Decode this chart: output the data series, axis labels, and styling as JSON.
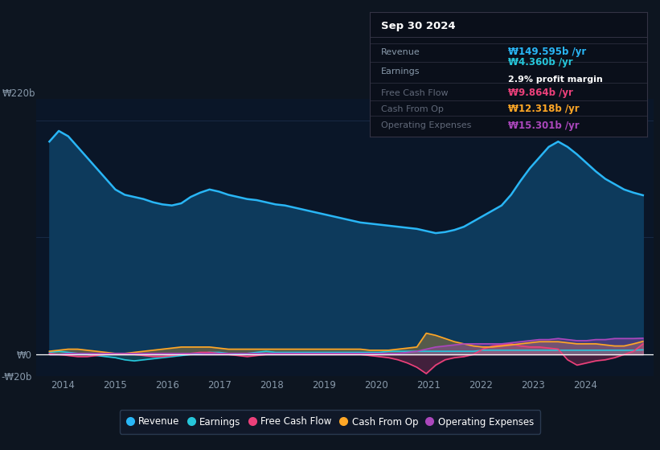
{
  "bg_color": "#0d1520",
  "plot_bg_color": "#0a1628",
  "grid_color": "#1e3050",
  "text_color": "#8899aa",
  "white_color": "#ffffff",
  "ylim": [
    -20,
    240
  ],
  "ytick_220b": "₩220b",
  "ytick_0": "₩0",
  "ytick_neg20b": "-₩20b",
  "xlim_start": 2013.5,
  "xlim_end": 2025.3,
  "xticks": [
    2014,
    2015,
    2016,
    2017,
    2018,
    2019,
    2020,
    2021,
    2022,
    2023,
    2024
  ],
  "revenue_color": "#29b6f6",
  "earnings_color": "#26c6da",
  "fcf_color": "#ec407a",
  "cashfromop_color": "#ffa726",
  "opex_color": "#ab47bc",
  "revenue_fill_color": "#0d3a5c",
  "legend_labels": [
    "Revenue",
    "Earnings",
    "Free Cash Flow",
    "Cash From Op",
    "Operating Expenses"
  ],
  "legend_colors": [
    "#29b6f6",
    "#26c6da",
    "#ec407a",
    "#ffa726",
    "#ab47bc"
  ],
  "tooltip_bg": "#0a0f1a",
  "tooltip_border": "#333344",
  "tooltip_title": "Sep 30 2024",
  "tooltip_rows": [
    {
      "label": "Revenue",
      "value": "₩149.595b /yr",
      "value_color": "#29b6f6",
      "extra": ""
    },
    {
      "label": "Earnings",
      "value": "₩4.360b /yr",
      "value_color": "#26c6da",
      "extra": "2.9% profit margin"
    },
    {
      "label": "Free Cash Flow",
      "value": "₩9.864b /yr",
      "value_color": "#ec407a",
      "extra": ""
    },
    {
      "label": "Cash From Op",
      "value": "₩12.318b /yr",
      "value_color": "#ffa726",
      "extra": ""
    },
    {
      "label": "Operating Expenses",
      "value": "₩15.301b /yr",
      "value_color": "#ab47bc",
      "extra": ""
    }
  ],
  "revenue": [
    200,
    210,
    205,
    195,
    185,
    175,
    165,
    155,
    150,
    148,
    146,
    143,
    141,
    140,
    142,
    148,
    152,
    155,
    153,
    150,
    148,
    146,
    145,
    143,
    141,
    140,
    138,
    136,
    134,
    132,
    130,
    128,
    126,
    124,
    123,
    122,
    121,
    120,
    119,
    118,
    116,
    114,
    115,
    117,
    120,
    125,
    130,
    135,
    140,
    150,
    163,
    175,
    185,
    195,
    200,
    195,
    188,
    180,
    172,
    165,
    160,
    155,
    152,
    149.6
  ],
  "earnings": [
    2,
    3,
    2,
    1,
    0,
    -1,
    -2,
    -3,
    -5,
    -6,
    -5,
    -4,
    -3,
    -2,
    -1,
    0,
    1,
    2,
    2,
    1,
    0,
    1,
    2,
    3,
    2,
    2,
    2,
    2,
    2,
    2,
    2,
    2,
    2,
    2,
    2,
    2,
    3,
    3,
    3,
    3,
    3,
    3,
    3,
    3,
    3,
    3,
    4,
    4,
    4,
    4,
    4,
    4,
    4,
    4,
    4,
    4,
    4,
    4,
    4,
    4,
    4,
    4,
    4,
    4.36
  ],
  "fcf": [
    1,
    0,
    -1,
    -2,
    -2,
    -1,
    0,
    1,
    1,
    0,
    -1,
    -2,
    -2,
    -1,
    0,
    1,
    2,
    2,
    1,
    0,
    -1,
    -2,
    -1,
    0,
    1,
    1,
    1,
    0,
    0,
    0,
    0,
    0,
    0,
    0,
    -1,
    -2,
    -3,
    -5,
    -8,
    -12,
    -18,
    -10,
    -5,
    -3,
    -2,
    0,
    5,
    8,
    9,
    10,
    8,
    7,
    7,
    6,
    5,
    -5,
    -10,
    -8,
    -6,
    -5,
    -3,
    0,
    3,
    9.86
  ],
  "cashfromop": [
    3,
    4,
    5,
    5,
    4,
    3,
    2,
    1,
    1,
    2,
    3,
    4,
    5,
    6,
    7,
    7,
    7,
    7,
    6,
    5,
    5,
    5,
    5,
    5,
    5,
    5,
    5,
    5,
    5,
    5,
    5,
    5,
    5,
    5,
    4,
    4,
    4,
    5,
    6,
    7,
    20,
    18,
    15,
    12,
    10,
    8,
    7,
    7,
    8,
    9,
    10,
    11,
    12,
    12,
    12,
    11,
    10,
    10,
    10,
    9,
    8,
    8,
    10,
    12.32
  ],
  "opex": [
    0,
    0,
    1,
    1,
    1,
    1,
    1,
    1,
    1,
    1,
    1,
    1,
    1,
    1,
    1,
    1,
    1,
    1,
    1,
    1,
    1,
    1,
    1,
    1,
    1,
    1,
    1,
    1,
    1,
    1,
    1,
    1,
    1,
    1,
    1,
    1,
    1,
    1,
    2,
    3,
    5,
    7,
    8,
    9,
    10,
    10,
    10,
    10,
    10,
    11,
    12,
    13,
    14,
    14,
    15,
    14,
    13,
    13,
    14,
    14,
    15,
    15,
    15,
    15.3
  ]
}
